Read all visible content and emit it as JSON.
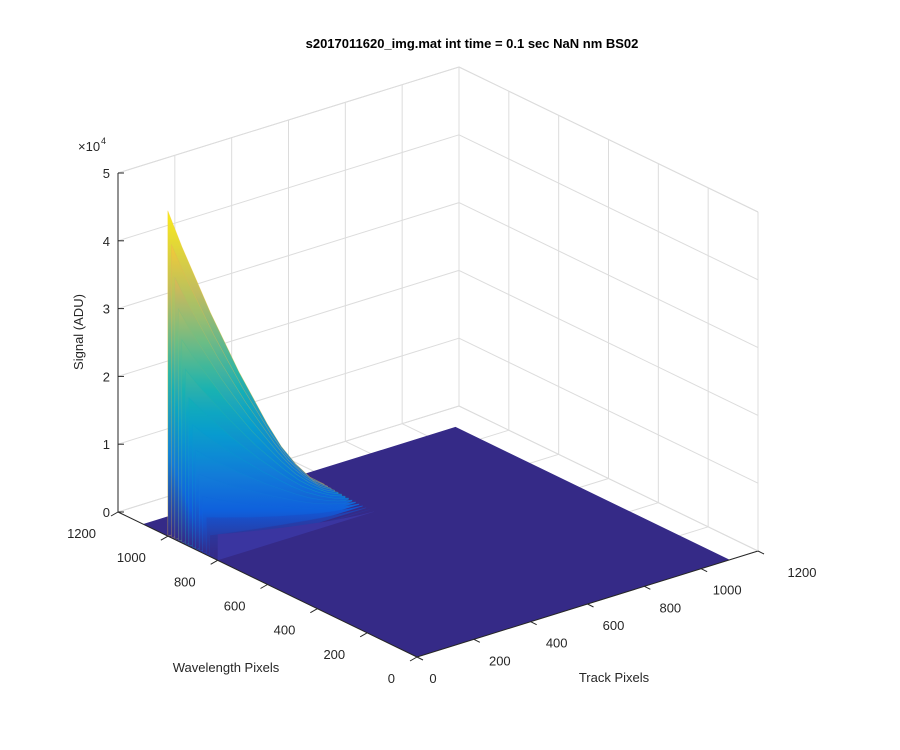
{
  "chart_data": {
    "type": "surface",
    "title": "s2017011620_img.mat int time = 0.1 sec  NaN nm BS02",
    "xlabel": "Track Pixels",
    "ylabel": "Wavelength Pixels",
    "zlabel": "Signal (ADU)",
    "z_exponent_label": "×10",
    "z_exponent_power": "4",
    "xlim": [
      0,
      1200
    ],
    "ylim": [
      0,
      1200
    ],
    "zlim": [
      0,
      50000
    ],
    "x_ticks": [
      "0",
      "200",
      "400",
      "600",
      "800",
      "1000",
      "1200"
    ],
    "y_ticks": [
      "0",
      "200",
      "400",
      "600",
      "800",
      "1000",
      "1200"
    ],
    "z_ticks": [
      "0",
      "1",
      "2",
      "3",
      "4",
      "5"
    ],
    "grid": true,
    "colormap": "parula",
    "baseline_color": "#352A87",
    "surface": {
      "x_extent": [
        0,
        1100
      ],
      "y_extent": [
        0,
        1100
      ],
      "peak_track_range": [
        0,
        550
      ],
      "peak_wavelength_pixel": 1000,
      "peak_signal_max": 48000,
      "background_signal": 0,
      "profile_track": [
        0,
        50,
        100,
        150,
        200,
        250,
        300,
        350,
        400,
        450,
        500,
        550
      ],
      "profile_signal": [
        48000,
        42000,
        36500,
        31000,
        26000,
        21000,
        16500,
        12000,
        8000,
        4800,
        2200,
        500
      ]
    }
  }
}
